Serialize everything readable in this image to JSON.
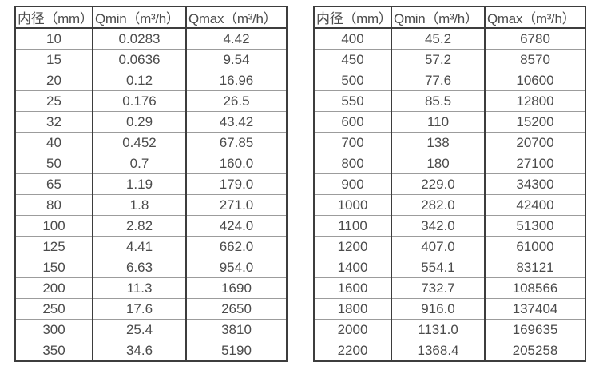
{
  "colors": {
    "background": "#ffffff",
    "text": "#4b4b4b",
    "border_dark": "#3d3d3d",
    "border_light": "#9c9c9c"
  },
  "tables": [
    {
      "name": "flow-spec-small-diameters",
      "headers": [
        "内径（mm）",
        "Qmin（m³/h）",
        "Qmax（m³/h）"
      ],
      "rows": [
        [
          "10",
          "0.0283",
          "4.42"
        ],
        [
          "15",
          "0.0636",
          "9.54"
        ],
        [
          "20",
          "0.12",
          "16.96"
        ],
        [
          "25",
          "0.176",
          "26.5"
        ],
        [
          "32",
          "0.29",
          "43.42"
        ],
        [
          "40",
          "0.452",
          "67.85"
        ],
        [
          "50",
          "0.7",
          "160.0"
        ],
        [
          "65",
          "1.19",
          "179.0"
        ],
        [
          "80",
          "1.8",
          "271.0"
        ],
        [
          "100",
          "2.82",
          "424.0"
        ],
        [
          "125",
          "4.41",
          "662.0"
        ],
        [
          "150",
          "6.63",
          "954.0"
        ],
        [
          "200",
          "11.3",
          "1690"
        ],
        [
          "250",
          "17.6",
          "2650"
        ],
        [
          "300",
          "25.4",
          "3810"
        ],
        [
          "350",
          "34.6",
          "5190"
        ]
      ]
    },
    {
      "name": "flow-spec-large-diameters",
      "headers": [
        "内径（mm）",
        "Qmin（m³/h）",
        "Qmax（m³/h）"
      ],
      "rows": [
        [
          "400",
          "45.2",
          "6780"
        ],
        [
          "450",
          "57.2",
          "8570"
        ],
        [
          "500",
          "77.6",
          "10600"
        ],
        [
          "550",
          "85.5",
          "12800"
        ],
        [
          "600",
          "110",
          "15200"
        ],
        [
          "700",
          "138",
          "20700"
        ],
        [
          "800",
          "180",
          "27100"
        ],
        [
          "900",
          "229.0",
          "34300"
        ],
        [
          "1000",
          "282.0",
          "42400"
        ],
        [
          "1100",
          "342.0",
          "51300"
        ],
        [
          "1200",
          "407.0",
          "61000"
        ],
        [
          "1400",
          "554.1",
          "83121"
        ],
        [
          "1600",
          "732.7",
          "108566"
        ],
        [
          "1800",
          "916.0",
          "137404"
        ],
        [
          "2000",
          "1131.0",
          "169635"
        ],
        [
          "2200",
          "1368.4",
          "205258"
        ]
      ]
    }
  ]
}
